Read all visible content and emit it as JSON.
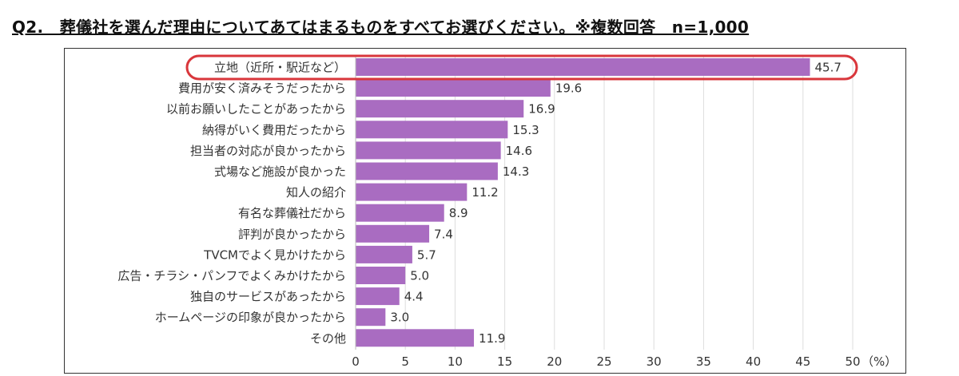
{
  "title": "Q2.　葬儀社を選んだ理由についてあてはまるものをすべてお選びください。※複数回答　n=1,000",
  "chart_data": {
    "type": "bar",
    "orientation": "horizontal",
    "categories": [
      "立地（近所・駅近など）",
      "費用が安く済みそうだったから",
      "以前お願いしたことがあったから",
      "納得がいく費用だったから",
      "担当者の対応が良かったから",
      "式場など施設が良かった",
      "知人の紹介",
      "有名な葬儀社だから",
      "評判が良かったから",
      "TVCMでよく見かけたから",
      "広告・チラシ・パンフでよくみかけたから",
      "独自のサービスがあったから",
      "ホームページの印象が良かったから",
      "その他"
    ],
    "values": [
      45.7,
      19.6,
      16.9,
      15.3,
      14.6,
      14.3,
      11.2,
      8.9,
      7.4,
      5.7,
      5.0,
      4.4,
      3.0,
      11.9
    ],
    "value_labels": [
      "45.7",
      "19.6",
      "16.9",
      "15.3",
      "14.6",
      "14.3",
      "11.2",
      "8.9",
      "7.4",
      "5.7",
      "5.0",
      "4.4",
      "3.0",
      "11.9"
    ],
    "xlim": [
      0,
      50
    ],
    "xticks": [
      "0",
      "5",
      "10",
      "15",
      "20",
      "25",
      "30",
      "35",
      "40",
      "45",
      "50"
    ],
    "unit": "（%）",
    "grid": true,
    "bar_color": "#a96cc1",
    "highlight": {
      "index": 0,
      "color": "#d9363b"
    }
  }
}
